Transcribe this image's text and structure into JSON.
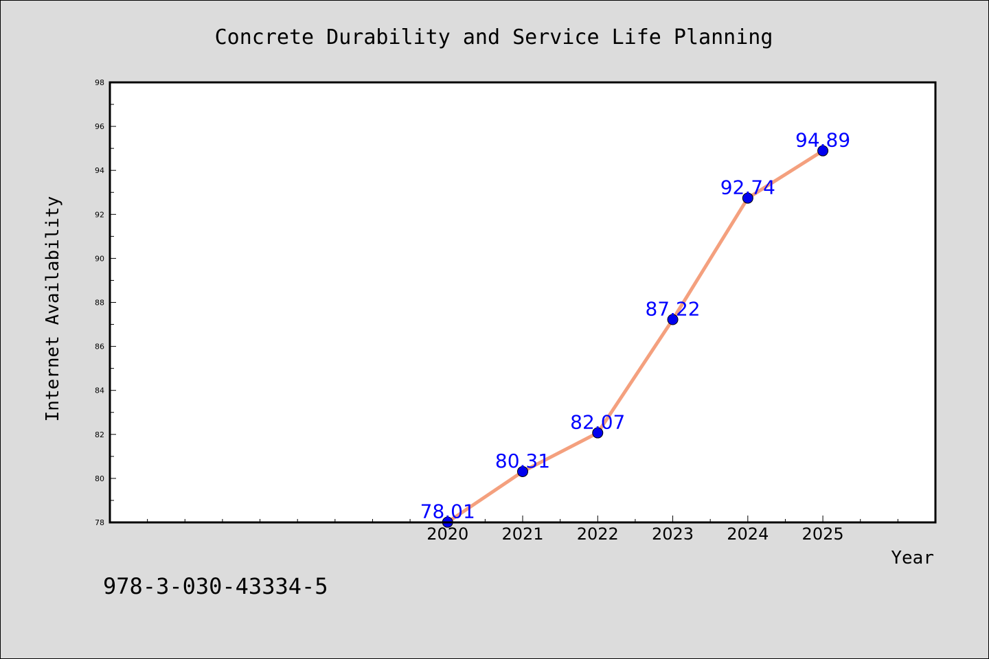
{
  "chart_data": {
    "type": "line",
    "title": "Concrete Durability and Service Life Planning",
    "xlabel": "Year",
    "ylabel": "Internet Availability",
    "x": [
      "2020",
      "2021",
      "2022",
      "2023",
      "2024",
      "2025"
    ],
    "xlim": [
      2015.5,
      2026.5
    ],
    "series": [
      {
        "values": [
          78.01,
          80.31,
          82.07,
          87.22,
          92.74,
          94.89
        ],
        "data_labels": [
          "78.01",
          "80.31",
          "82.07",
          "87.22",
          "92.74",
          "94.89"
        ]
      }
    ],
    "ylim": [
      78,
      98
    ],
    "yticks": [
      78,
      80,
      82,
      84,
      86,
      88,
      90,
      92,
      94,
      96,
      98
    ],
    "grid": false,
    "line_color": "#f4a07e",
    "marker_color": "#0000ee",
    "label_color": "#0000ff",
    "background_color": "#dcdcdc",
    "plot_background_color": "#ffffff"
  },
  "footer_text": "978-3-030-43334-5"
}
